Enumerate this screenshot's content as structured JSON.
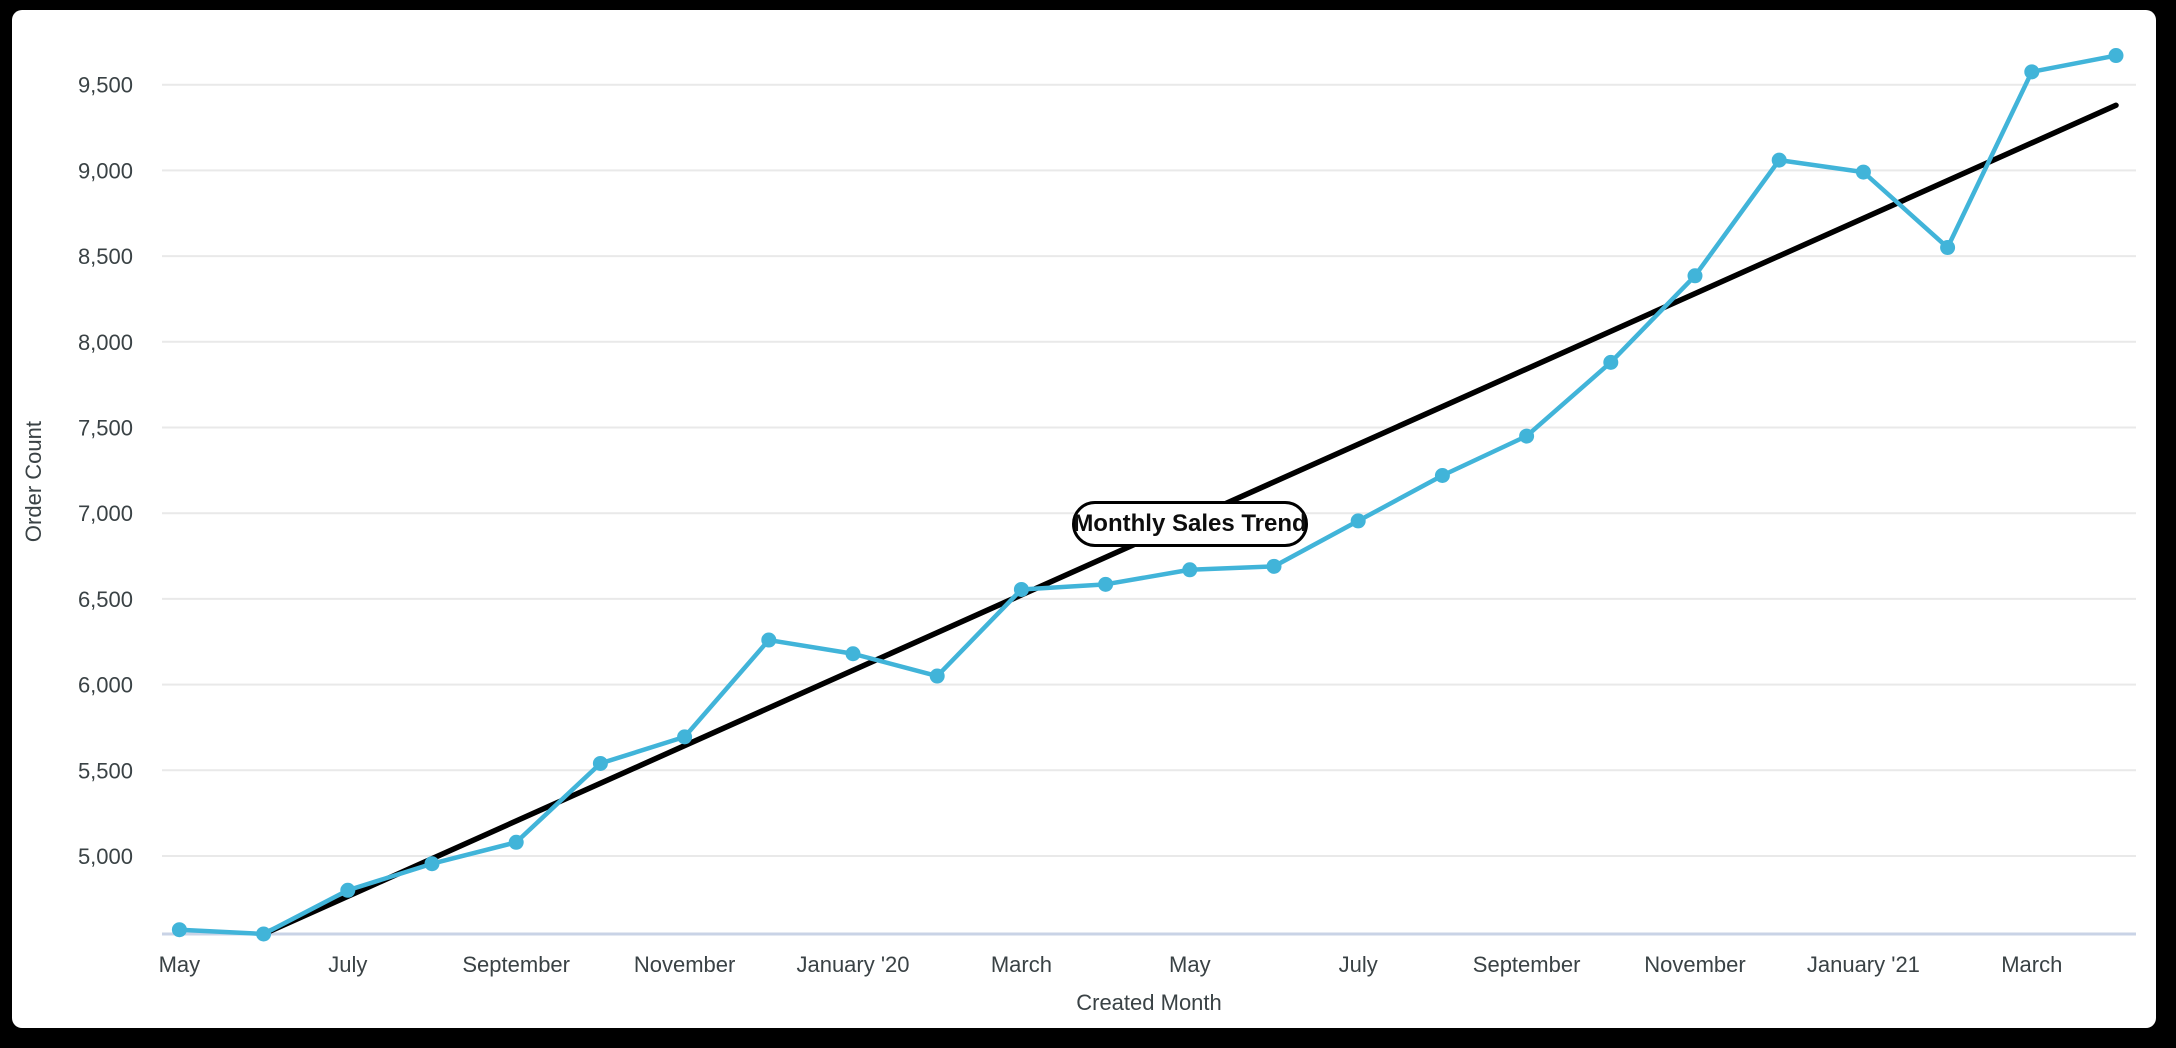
{
  "chart_data": {
    "type": "line",
    "series_label": "Monthly Sales Trend",
    "xlabel": "Created Month",
    "ylabel": "Order Count",
    "x": [
      "May 2019",
      "Jun 2019",
      "Jul 2019",
      "Aug 2019",
      "Sep 2019",
      "Oct 2019",
      "Nov 2019",
      "Dec 2019",
      "Jan 2020",
      "Feb 2020",
      "Mar 2020",
      "Apr 2020",
      "May 2020",
      "Jun 2020",
      "Jul 2020",
      "Aug 2020",
      "Sep 2020",
      "Oct 2020",
      "Nov 2020",
      "Dec 2020",
      "Jan 2021",
      "Feb 2021",
      "Mar 2021",
      "Apr 2021"
    ],
    "series": [
      {
        "name": "Order Count",
        "color": "#41b4d9",
        "values": [
          4570,
          4545,
          4800,
          4955,
          5080,
          5540,
          5695,
          6260,
          6180,
          6050,
          6555,
          6585,
          6670,
          6690,
          6955,
          7220,
          7450,
          7880,
          8385,
          9060,
          8990,
          8550,
          9575,
          9670
        ]
      },
      {
        "name": "Linear Trend",
        "color": "#000000",
        "trend_start": {
          "x": "Jun 2019",
          "value": 4545
        },
        "trend_end": {
          "x": "Apr 2021",
          "value": 9380
        }
      }
    ],
    "x_tick_labels": [
      "May",
      "July",
      "September",
      "November",
      "January '20",
      "March",
      "May",
      "July",
      "September",
      "November",
      "January '21",
      "March"
    ],
    "x_tick_month_step": 2,
    "y_ticks": [
      {
        "value": 5000,
        "label": "5,000"
      },
      {
        "value": 5500,
        "label": "5,500"
      },
      {
        "value": 6000,
        "label": "6,000"
      },
      {
        "value": 6500,
        "label": "6,500"
      },
      {
        "value": 7000,
        "label": "7,000"
      },
      {
        "value": 7500,
        "label": "7,500"
      },
      {
        "value": 8000,
        "label": "8,000"
      },
      {
        "value": 8500,
        "label": "8,500"
      },
      {
        "value": 9000,
        "label": "9,000"
      },
      {
        "value": 9500,
        "label": "9,500"
      }
    ],
    "ylim": [
      4545,
      9820
    ],
    "grid": true,
    "legend_position": "none",
    "colors": {
      "series_line": "#41b4d9",
      "trend_line": "#000000",
      "gridline": "#e9e9e9",
      "axis_baseline": "#c9d3e6",
      "tick_text": "#3a4245",
      "card_background": "#ffffff",
      "frame_background": "#000000"
    }
  }
}
